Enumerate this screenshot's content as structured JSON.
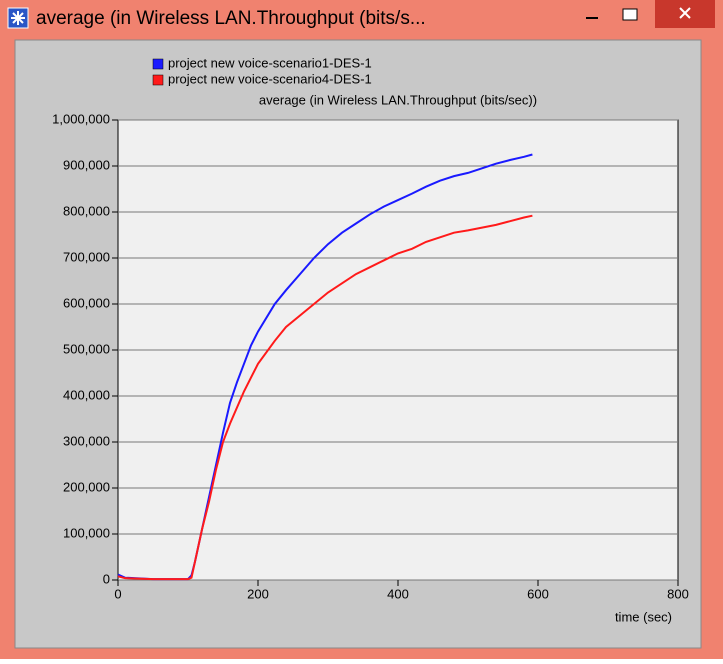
{
  "window": {
    "title": "average (in Wireless LAN.Throughput (bits/s..."
  },
  "chart_data": {
    "type": "line",
    "title": "average (in Wireless LAN.Throughput (bits/sec))",
    "xlabel": "time (sec)",
    "x": [
      0,
      10,
      50,
      100,
      105,
      110,
      120,
      130,
      140,
      150,
      160,
      170,
      180,
      190,
      200,
      224,
      240,
      260,
      280,
      300,
      320,
      340,
      360,
      380,
      400,
      420,
      440,
      460,
      480,
      500,
      520,
      540,
      560,
      580,
      592
    ],
    "series": [
      {
        "name": "project new voice-scenario1-DES-1",
        "color": "#1a1aff",
        "values": [
          12000,
          5000,
          2000,
          2000,
          10000,
          40000,
          110000,
          180000,
          250000,
          320000,
          385000,
          430000,
          470000,
          510000,
          540000,
          600000,
          630000,
          665000,
          700000,
          730000,
          755000,
          775000,
          795000,
          812000,
          826000,
          840000,
          855000,
          868000,
          878000,
          885000,
          895000,
          905000,
          913000,
          920000,
          925000
        ]
      },
      {
        "name": "project new voice-scenario4-DES-1",
        "color": "#ff1a1a",
        "values": [
          8000,
          4000,
          2000,
          2000,
          5000,
          40000,
          110000,
          170000,
          240000,
          300000,
          340000,
          375000,
          410000,
          440000,
          470000,
          520000,
          550000,
          575000,
          600000,
          625000,
          645000,
          665000,
          680000,
          695000,
          710000,
          720000,
          735000,
          745000,
          755000,
          760000,
          766000,
          772000,
          780000,
          788000,
          792000
        ]
      }
    ],
    "xlim": [
      0,
      800
    ],
    "xticks": [
      0,
      200,
      400,
      600,
      800
    ],
    "ylim": [
      0,
      1000000
    ],
    "yticks": [
      {
        "value": 0,
        "label": "0"
      },
      {
        "value": 100000,
        "label": "100,000"
      },
      {
        "value": 200000,
        "label": "200,000"
      },
      {
        "value": 300000,
        "label": "300,000"
      },
      {
        "value": 400000,
        "label": "400,000"
      },
      {
        "value": 500000,
        "label": "500,000"
      },
      {
        "value": 600000,
        "label": "600,000"
      },
      {
        "value": 700000,
        "label": "700,000"
      },
      {
        "value": 800000,
        "label": "800,000"
      },
      {
        "value": 900000,
        "label": "900,000"
      },
      {
        "value": 1000000,
        "label": "1,000,000"
      }
    ],
    "grid": true
  }
}
